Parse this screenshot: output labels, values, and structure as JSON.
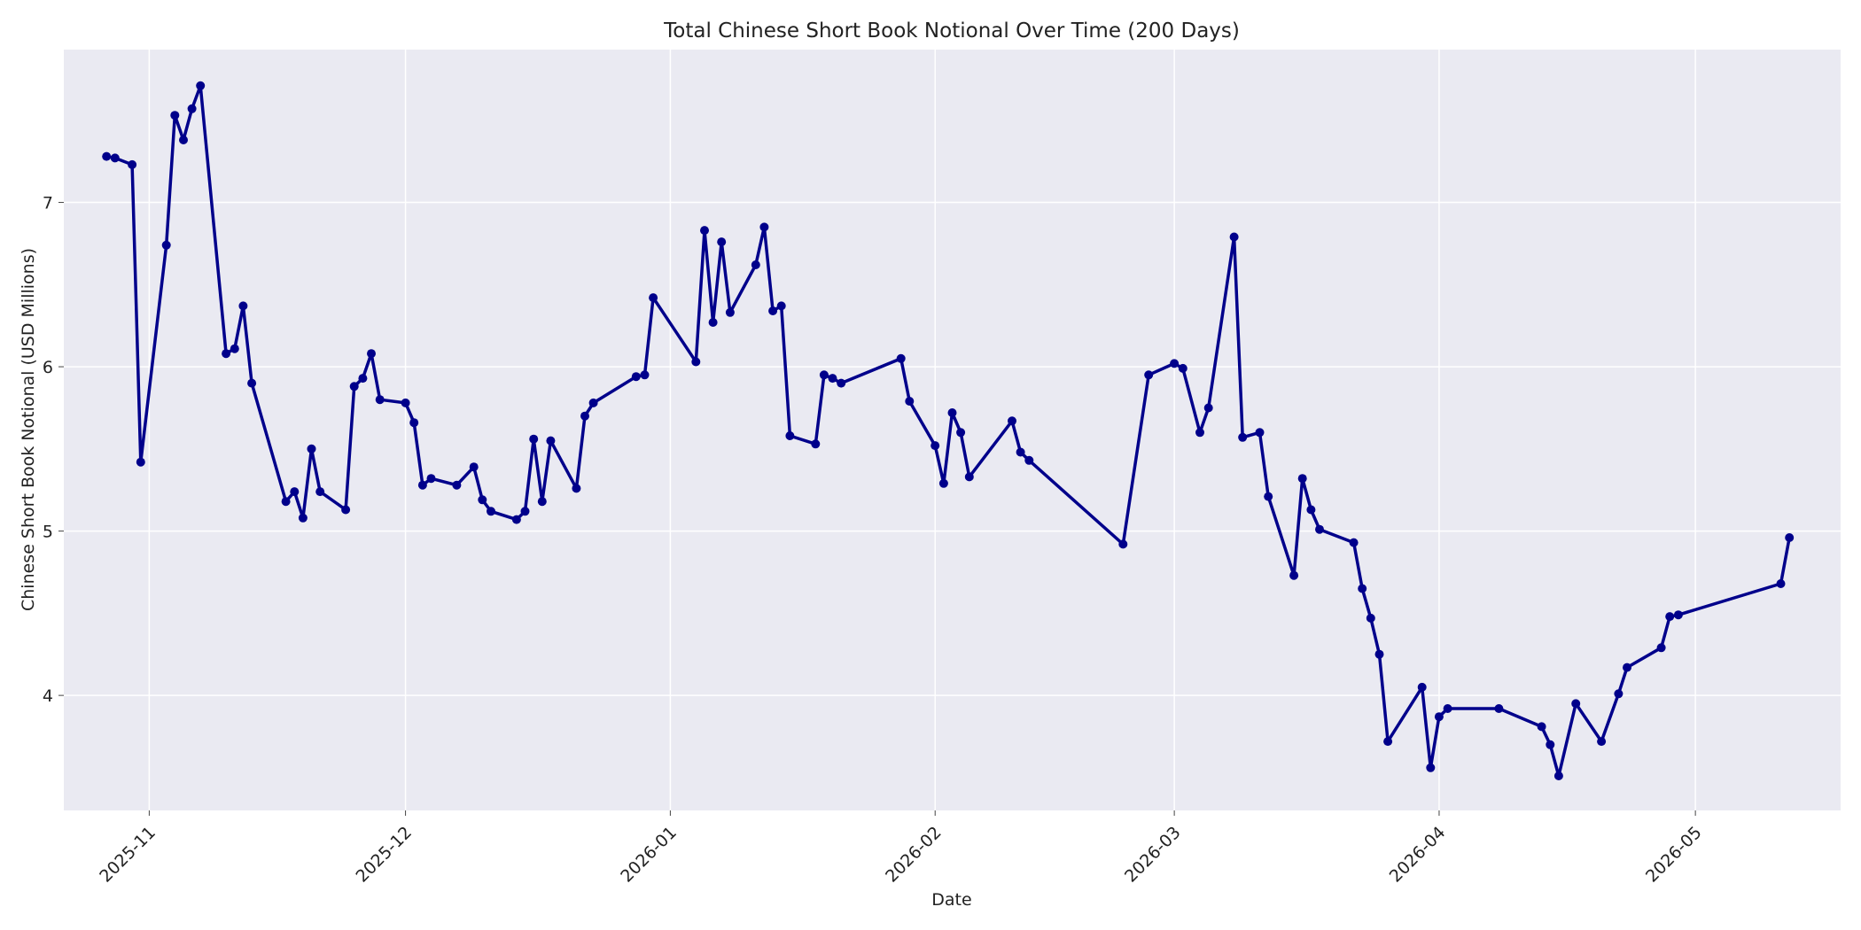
{
  "chart_data": {
    "type": "line",
    "title": "Total Chinese Short Book Notional Over Time (200 Days)",
    "xlabel": "Date",
    "ylabel": "Chinese Short Book Notional (USD Millions)",
    "xlim": [
      "2025-10-22",
      "2026-05-18"
    ],
    "ylim": [
      3.3,
      7.93
    ],
    "grid": true,
    "x_ticks": [
      "2025-11",
      "2025-12",
      "2026-01",
      "2026-02",
      "2026-03",
      "2026-04",
      "2026-05"
    ],
    "y_ticks": [
      "4",
      "5",
      "6",
      "7"
    ],
    "line_color": "#00008b",
    "background": "#eaeaf2",
    "series": [
      {
        "points": [
          [
            "2025-10-27",
            7.28
          ],
          [
            "2025-10-28",
            7.27
          ],
          [
            "2025-10-30",
            7.23
          ],
          [
            "2025-10-31",
            5.42
          ],
          [
            "2025-11-03",
            6.74
          ],
          [
            "2025-11-04",
            7.53
          ],
          [
            "2025-11-05",
            7.38
          ],
          [
            "2025-11-06",
            7.57
          ],
          [
            "2025-11-07",
            7.71
          ],
          [
            "2025-11-10",
            6.08
          ],
          [
            "2025-11-11",
            6.11
          ],
          [
            "2025-11-12",
            6.37
          ],
          [
            "2025-11-13",
            5.9
          ],
          [
            "2025-11-17",
            5.18
          ],
          [
            "2025-11-18",
            5.24
          ],
          [
            "2025-11-19",
            5.08
          ],
          [
            "2025-11-20",
            5.5
          ],
          [
            "2025-11-21",
            5.24
          ],
          [
            "2025-11-24",
            5.13
          ],
          [
            "2025-11-25",
            5.88
          ],
          [
            "2025-11-26",
            5.93
          ],
          [
            "2025-11-27",
            6.08
          ],
          [
            "2025-11-28",
            5.8
          ],
          [
            "2025-12-01",
            5.78
          ],
          [
            "2025-12-02",
            5.66
          ],
          [
            "2025-12-03",
            5.28
          ],
          [
            "2025-12-04",
            5.32
          ],
          [
            "2025-12-07",
            5.28
          ],
          [
            "2025-12-09",
            5.39
          ],
          [
            "2025-12-10",
            5.19
          ],
          [
            "2025-12-11",
            5.12
          ],
          [
            "2025-12-14",
            5.07
          ],
          [
            "2025-12-15",
            5.12
          ],
          [
            "2025-12-16",
            5.56
          ],
          [
            "2025-12-17",
            5.18
          ],
          [
            "2025-12-18",
            5.55
          ],
          [
            "2025-12-21",
            5.26
          ],
          [
            "2025-12-22",
            5.7
          ],
          [
            "2025-12-23",
            5.78
          ],
          [
            "2025-12-28",
            5.94
          ],
          [
            "2025-12-29",
            5.95
          ],
          [
            "2025-12-30",
            6.42
          ],
          [
            "2026-01-04",
            6.03
          ],
          [
            "2026-01-05",
            6.83
          ],
          [
            "2026-01-06",
            6.27
          ],
          [
            "2026-01-07",
            6.76
          ],
          [
            "2026-01-08",
            6.33
          ],
          [
            "2026-01-11",
            6.62
          ],
          [
            "2026-01-12",
            6.85
          ],
          [
            "2026-01-13",
            6.34
          ],
          [
            "2026-01-14",
            6.37
          ],
          [
            "2026-01-15",
            5.58
          ],
          [
            "2026-01-18",
            5.53
          ],
          [
            "2026-01-19",
            5.95
          ],
          [
            "2026-01-20",
            5.93
          ],
          [
            "2026-01-21",
            5.9
          ],
          [
            "2026-01-28",
            6.05
          ],
          [
            "2026-01-29",
            5.79
          ],
          [
            "2026-02-01",
            5.52
          ],
          [
            "2026-02-02",
            5.29
          ],
          [
            "2026-02-03",
            5.72
          ],
          [
            "2026-02-04",
            5.6
          ],
          [
            "2026-02-05",
            5.33
          ],
          [
            "2026-02-10",
            5.67
          ],
          [
            "2026-02-11",
            5.48
          ],
          [
            "2026-02-12",
            5.43
          ],
          [
            "2026-02-23",
            4.92
          ],
          [
            "2026-02-26",
            5.95
          ],
          [
            "2026-03-01",
            6.02
          ],
          [
            "2026-03-02",
            5.99
          ],
          [
            "2026-03-04",
            5.6
          ],
          [
            "2026-03-05",
            5.75
          ],
          [
            "2026-03-08",
            6.79
          ],
          [
            "2026-03-09",
            5.57
          ],
          [
            "2026-03-11",
            5.6
          ],
          [
            "2026-03-12",
            5.21
          ],
          [
            "2026-03-15",
            4.73
          ],
          [
            "2026-03-16",
            5.32
          ],
          [
            "2026-03-17",
            5.13
          ],
          [
            "2026-03-18",
            5.01
          ],
          [
            "2026-03-22",
            4.93
          ],
          [
            "2026-03-23",
            4.65
          ],
          [
            "2026-03-24",
            4.47
          ],
          [
            "2026-03-25",
            4.25
          ],
          [
            "2026-03-26",
            3.72
          ],
          [
            "2026-03-30",
            4.05
          ],
          [
            "2026-03-31",
            3.56
          ],
          [
            "2026-04-01",
            3.87
          ],
          [
            "2026-04-02",
            3.92
          ],
          [
            "2026-04-08",
            3.92
          ],
          [
            "2026-04-13",
            3.81
          ],
          [
            "2026-04-14",
            3.7
          ],
          [
            "2026-04-15",
            3.51
          ],
          [
            "2026-04-17",
            3.95
          ],
          [
            "2026-04-20",
            3.72
          ],
          [
            "2026-04-22",
            4.01
          ],
          [
            "2026-04-23",
            4.17
          ],
          [
            "2026-04-27",
            4.29
          ],
          [
            "2026-04-28",
            4.48
          ],
          [
            "2026-04-29",
            4.49
          ],
          [
            "2026-05-11",
            4.68
          ],
          [
            "2026-05-12",
            4.96
          ]
        ]
      }
    ]
  }
}
